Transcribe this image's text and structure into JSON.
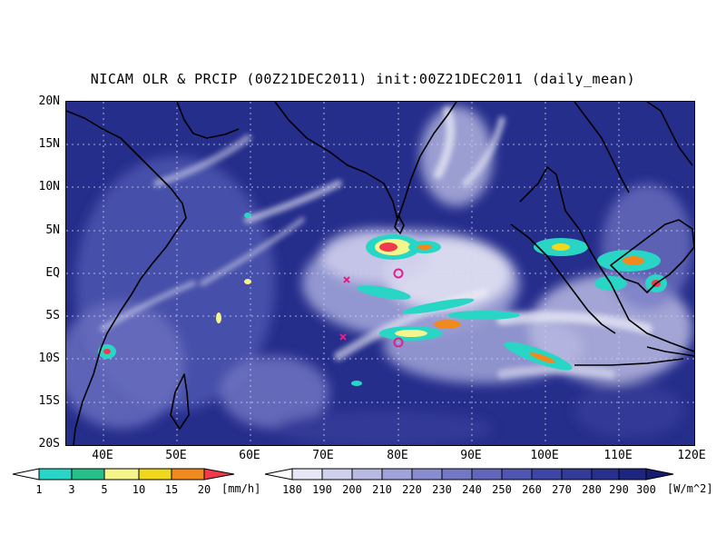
{
  "title": "NICAM OLR & PRCIP (00Z21DEC2011) init:00Z21DEC2011 (daily_mean)",
  "latitude_labels": [
    "20N",
    "15N",
    "10N",
    "5N",
    "EQ",
    "5S",
    "10S",
    "15S",
    "20S"
  ],
  "longitude_labels": [
    "40E",
    "50E",
    "60E",
    "70E",
    "80E",
    "90E",
    "100E",
    "110E",
    "120E"
  ],
  "precip_colorbar": {
    "labels": [
      "1",
      "3",
      "5",
      "10",
      "15",
      "20"
    ],
    "unit": "[mm/h]",
    "colors": [
      "#ffffff",
      "#29d6c6",
      "#25c08a",
      "#f4f68c",
      "#f0d81e",
      "#f08a1e",
      "#ee3a4a"
    ]
  },
  "olr_colorbar": {
    "labels": [
      "180",
      "190",
      "200",
      "210",
      "220",
      "230",
      "240",
      "250",
      "260",
      "270",
      "280",
      "290",
      "300"
    ],
    "unit": "[W/m^2]",
    "colors": [
      "#ffffff",
      "#e6e6f4",
      "#cfd0ec",
      "#b8bae2",
      "#a0a3d8",
      "#898dcf",
      "#7478c4",
      "#6166bb",
      "#4f55b0",
      "#3f45a4",
      "#333a98",
      "#282f8c",
      "#1e2580",
      "#151c72"
    ]
  },
  "markers": [
    {
      "type": "circle",
      "lon": 80,
      "lat": 0
    },
    {
      "type": "circle",
      "lon": 80,
      "lat": -8
    },
    {
      "type": "x",
      "lon": 73,
      "lat": -1
    },
    {
      "type": "x",
      "lon": 72.5,
      "lat": -7.5
    }
  ],
  "map_extent": {
    "lon": [
      35,
      120
    ],
    "lat": [
      -20,
      20
    ]
  },
  "marker_color": "#e0208a"
}
